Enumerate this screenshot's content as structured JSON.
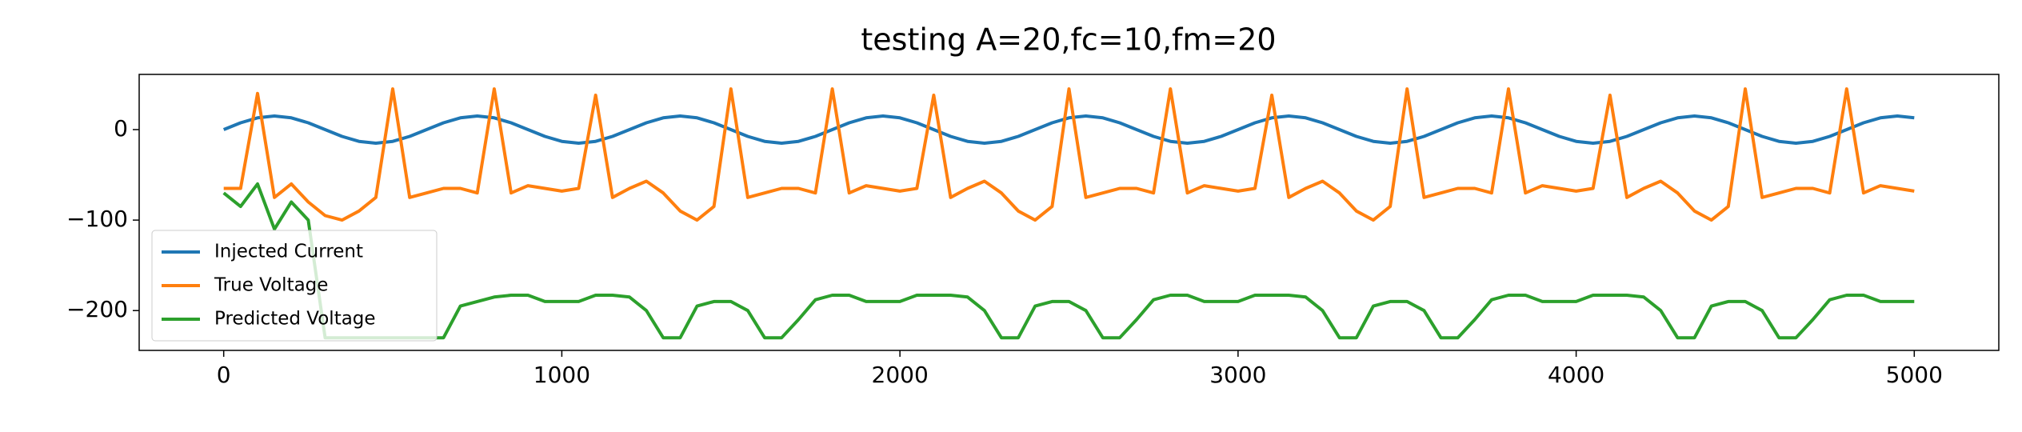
{
  "chart_data": {
    "type": "line",
    "title": "testing A=20,fc=10,fm=20",
    "x": [
      0,
      50,
      100,
      150,
      200,
      250,
      300,
      350,
      400,
      450,
      500,
      550,
      600,
      650,
      700,
      750,
      800,
      850,
      900,
      950,
      1000,
      1050,
      1100,
      1150,
      1200,
      1250,
      1300,
      1350,
      1400,
      1450,
      1500,
      1550,
      1600,
      1650,
      1700,
      1750,
      1800,
      1850,
      1900,
      1950,
      2000,
      2050,
      2100,
      2150,
      2200,
      2250,
      2300,
      2350,
      2400,
      2450,
      2500,
      2550,
      2600,
      2650,
      2700,
      2750,
      2800,
      2850,
      2900,
      2950,
      3000,
      3050,
      3100,
      3150,
      3200,
      3250,
      3300,
      3350,
      3400,
      3450,
      3500,
      3550,
      3600,
      3650,
      3700,
      3750,
      3800,
      3850,
      3900,
      3950,
      4000,
      4050,
      4100,
      4150,
      4200,
      4250,
      4300,
      4350,
      4400,
      4450,
      4500,
      4550,
      4600,
      4650,
      4700,
      4750,
      4800,
      4850,
      4900,
      4950,
      5000
    ],
    "series": [
      {
        "name": "Injected Current",
        "color": "#1f77b4",
        "values": [
          0,
          7.5,
          13,
          15,
          13,
          7.5,
          0,
          -7.5,
          -13,
          -15,
          -13,
          -7.5,
          0,
          7.5,
          13,
          15,
          13,
          7.5,
          0,
          -7.5,
          -13,
          -15,
          -13,
          -7.5,
          0,
          7.5,
          13,
          15,
          13,
          7.5,
          0,
          -7.5,
          -13,
          -15,
          -13,
          -7.5,
          0,
          7.5,
          13,
          15,
          13,
          7.5,
          0,
          -7.5,
          -13,
          -15,
          -13,
          -7.5,
          0,
          7.5,
          13,
          15,
          13,
          7.5,
          0,
          -7.5,
          -13,
          -15,
          -13,
          -7.5,
          0,
          7.5,
          13,
          15,
          13,
          7.5,
          0,
          -7.5,
          -13,
          -15,
          -13,
          -7.5,
          0,
          7.5,
          13,
          15,
          13,
          7.5,
          0,
          -7.5,
          -13,
          -15,
          -13,
          -7.5,
          0,
          7.5,
          13,
          15,
          13,
          7.5,
          0,
          -7.5,
          -13,
          -15,
          -13,
          -7.5,
          0,
          7.5,
          13,
          15,
          13
        ]
      },
      {
        "name": "True Voltage",
        "color": "#ff7f0e",
        "values": [
          -65,
          -65,
          40,
          -75,
          -60,
          -80,
          -95,
          -100,
          -90,
          -75,
          45,
          -75,
          -70,
          -65,
          -65,
          -70,
          45,
          -70,
          -62,
          -65,
          -68,
          -65,
          38,
          -75,
          -65,
          -57,
          -70,
          -90,
          -100,
          -85,
          45,
          -75,
          -70,
          -65,
          -65,
          -70,
          45,
          -70,
          -62,
          -65,
          -68,
          -65,
          38,
          -75,
          -65,
          -57,
          -70,
          -90,
          -100,
          -85,
          45,
          -75,
          -70,
          -65,
          -65,
          -70,
          45,
          -70,
          -62,
          -65,
          -68,
          -65,
          38,
          -75,
          -65,
          -57,
          -70,
          -90,
          -100,
          -85,
          45,
          -75,
          -70,
          -65,
          -65,
          -70,
          45,
          -70,
          -62,
          -65,
          -68,
          -65,
          38,
          -75,
          -65,
          -57,
          -70,
          -90,
          -100,
          -85,
          45,
          -75,
          -70,
          -65,
          -65,
          -70,
          45,
          -70,
          -62,
          -65,
          -68
        ]
      },
      {
        "name": "Predicted Voltage",
        "color": "#2ca02c",
        "values": [
          -70,
          -85,
          -60,
          -110,
          -80,
          -100,
          -230,
          -230,
          -230,
          -230,
          -230,
          -230,
          -230,
          -230,
          -195,
          -190,
          -185,
          -183,
          -183,
          -190,
          -190,
          -190,
          -183,
          -183,
          -185,
          -200,
          -230,
          -230,
          -195,
          -190,
          -190,
          -200,
          -230,
          -230,
          -210,
          -188,
          -183,
          -183,
          -190,
          -190,
          -190,
          -183,
          -183,
          -183,
          -185,
          -200,
          -230,
          -230,
          -195,
          -190,
          -190,
          -200,
          -230,
          -230,
          -210,
          -188,
          -183,
          -183,
          -190,
          -190,
          -190,
          -183,
          -183,
          -183,
          -185,
          -200,
          -230,
          -230,
          -195,
          -190,
          -190,
          -200,
          -230,
          -230,
          -210,
          -188,
          -183,
          -183,
          -190,
          -190,
          -190,
          -183,
          -183,
          -183,
          -185,
          -200,
          -230,
          -230,
          -195,
          -190,
          -190,
          -200,
          -230,
          -230,
          -210,
          -188,
          -183,
          -183,
          -190,
          -190,
          -190
        ]
      }
    ],
    "xlim": [
      -250,
      5250
    ],
    "ylim": [
      -244,
      61
    ],
    "xticks": [
      0,
      1000,
      2000,
      3000,
      4000,
      5000
    ],
    "yticks": [
      {
        "value": -200,
        "label": "−200"
      },
      {
        "value": -100,
        "label": "−100"
      },
      0
    ],
    "legend": "lower left"
  }
}
